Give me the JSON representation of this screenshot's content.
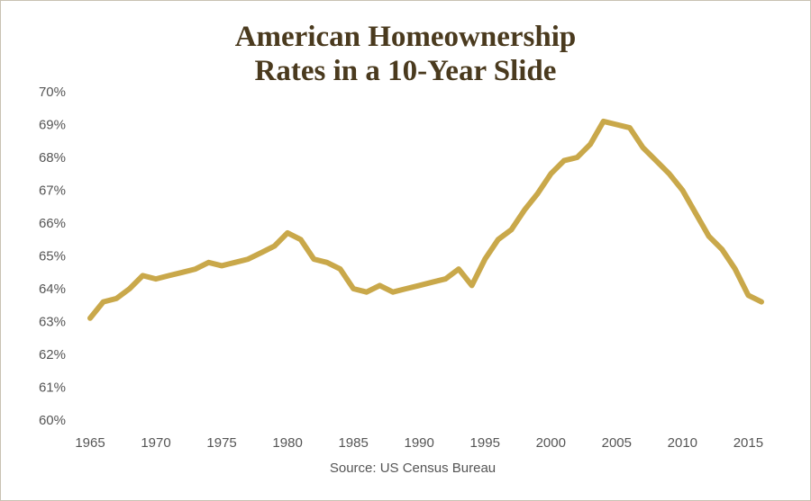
{
  "chart_data": {
    "type": "line",
    "title": [
      "American Homeownership",
      "Rates in a 10-Year Slide"
    ],
    "source": "Source: US Census Bureau",
    "xlabel": "",
    "ylabel": "",
    "xlim": [
      1965,
      2016
    ],
    "ylim": [
      60,
      70
    ],
    "x_ticks": [
      "1965",
      "1970",
      "1975",
      "1980",
      "1985",
      "1990",
      "1995",
      "2000",
      "2005",
      "2010",
      "2015"
    ],
    "y_ticks": [
      "60%",
      "61%",
      "62%",
      "63%",
      "64%",
      "65%",
      "66%",
      "67%",
      "68%",
      "69%",
      "70%"
    ],
    "grid": false,
    "line_color": "#c9a84a",
    "series": [
      {
        "x": [
          1965,
          1966,
          1967,
          1968,
          1969,
          1970,
          1971,
          1972,
          1973,
          1974,
          1975,
          1976,
          1977,
          1978,
          1979,
          1980,
          1981,
          1982,
          1983,
          1984,
          1985,
          1986,
          1987,
          1988,
          1989,
          1990,
          1991,
          1992,
          1993,
          1994,
          1995,
          1996,
          1997,
          1998,
          1999,
          2000,
          2001,
          2002,
          2003,
          2004,
          2005,
          2006,
          2007,
          2008,
          2009,
          2010,
          2011,
          2012,
          2013,
          2014,
          2015,
          2016
        ],
        "values": [
          63.1,
          63.6,
          63.7,
          64.0,
          64.4,
          64.3,
          64.4,
          64.5,
          64.6,
          64.8,
          64.7,
          64.8,
          64.9,
          65.1,
          65.3,
          65.7,
          65.5,
          64.9,
          64.8,
          64.6,
          64.0,
          63.9,
          64.1,
          63.9,
          64.0,
          64.1,
          64.2,
          64.3,
          64.6,
          64.1,
          64.9,
          65.5,
          65.8,
          66.4,
          66.9,
          67.5,
          67.9,
          68.0,
          68.4,
          69.1,
          69.0,
          68.9,
          68.3,
          67.9,
          67.5,
          67.0,
          66.3,
          65.6,
          65.2,
          64.6,
          63.8,
          63.6
        ]
      }
    ]
  }
}
